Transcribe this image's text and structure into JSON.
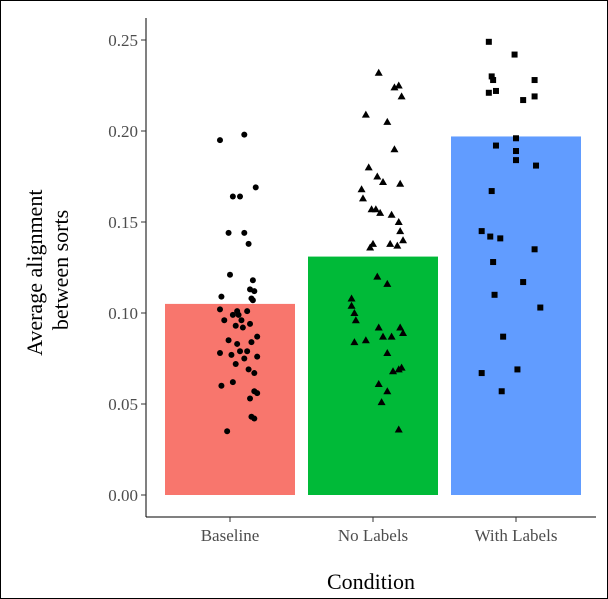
{
  "chart_data": {
    "type": "bar",
    "title": "",
    "xlabel": "Condition",
    "ylabel_lines": [
      "Average alignment",
      "between sorts"
    ],
    "categories": [
      "Baseline",
      "No Labels",
      "With Labels"
    ],
    "values": [
      0.105,
      0.131,
      0.197
    ],
    "bar_colors": [
      "#F8766D",
      "#00BA38",
      "#619CFF"
    ],
    "ylim": [
      0,
      0.25
    ],
    "yticks": [
      0,
      0.05,
      0.1,
      0.15,
      0.2,
      0.25
    ],
    "ytick_labels": [
      "0.00",
      "0.05",
      "0.10",
      "0.15",
      "0.20",
      "0.25"
    ],
    "grid": false,
    "point_shapes": [
      "circle",
      "triangle",
      "square"
    ],
    "points": [
      [
        {
          "x": 0.93,
          "y": 0.195
        },
        {
          "x": 1.1,
          "y": 0.198
        },
        {
          "x": 1.02,
          "y": 0.164
        },
        {
          "x": 1.07,
          "y": 0.164
        },
        {
          "x": 1.18,
          "y": 0.169
        },
        {
          "x": 0.99,
          "y": 0.144
        },
        {
          "x": 1.1,
          "y": 0.144
        },
        {
          "x": 1.13,
          "y": 0.138
        },
        {
          "x": 1.0,
          "y": 0.121
        },
        {
          "x": 1.16,
          "y": 0.118
        },
        {
          "x": 1.14,
          "y": 0.113
        },
        {
          "x": 1.17,
          "y": 0.112
        },
        {
          "x": 0.94,
          "y": 0.109
        },
        {
          "x": 1.15,
          "y": 0.108
        },
        {
          "x": 1.16,
          "y": 0.107
        },
        {
          "x": 0.93,
          "y": 0.102
        },
        {
          "x": 1.05,
          "y": 0.101
        },
        {
          "x": 1.12,
          "y": 0.101
        },
        {
          "x": 1.02,
          "y": 0.099
        },
        {
          "x": 1.06,
          "y": 0.099
        },
        {
          "x": 0.96,
          "y": 0.096
        },
        {
          "x": 1.08,
          "y": 0.096
        },
        {
          "x": 1.14,
          "y": 0.094
        },
        {
          "x": 1.04,
          "y": 0.093
        },
        {
          "x": 1.09,
          "y": 0.092
        },
        {
          "x": 1.19,
          "y": 0.087
        },
        {
          "x": 0.99,
          "y": 0.085
        },
        {
          "x": 1.15,
          "y": 0.084
        },
        {
          "x": 1.05,
          "y": 0.083
        },
        {
          "x": 1.12,
          "y": 0.079
        },
        {
          "x": 0.93,
          "y": 0.078
        },
        {
          "x": 1.07,
          "y": 0.079
        },
        {
          "x": 1.01,
          "y": 0.077
        },
        {
          "x": 1.1,
          "y": 0.075
        },
        {
          "x": 1.19,
          "y": 0.076
        },
        {
          "x": 1.04,
          "y": 0.072
        },
        {
          "x": 1.13,
          "y": 0.069
        },
        {
          "x": 1.17,
          "y": 0.067
        },
        {
          "x": 0.94,
          "y": 0.06
        },
        {
          "x": 1.02,
          "y": 0.062
        },
        {
          "x": 1.17,
          "y": 0.057
        },
        {
          "x": 1.19,
          "y": 0.056
        },
        {
          "x": 1.14,
          "y": 0.053
        },
        {
          "x": 1.15,
          "y": 0.043
        },
        {
          "x": 1.17,
          "y": 0.042
        },
        {
          "x": 0.98,
          "y": 0.035
        }
      ],
      [
        {
          "x": 2.04,
          "y": 0.232
        },
        {
          "x": 2.18,
          "y": 0.225
        },
        {
          "x": 2.15,
          "y": 0.224
        },
        {
          "x": 2.2,
          "y": 0.219
        },
        {
          "x": 1.95,
          "y": 0.209
        },
        {
          "x": 2.1,
          "y": 0.205
        },
        {
          "x": 2.15,
          "y": 0.19
        },
        {
          "x": 1.97,
          "y": 0.18
        },
        {
          "x": 2.03,
          "y": 0.175
        },
        {
          "x": 2.07,
          "y": 0.172
        },
        {
          "x": 2.19,
          "y": 0.171
        },
        {
          "x": 1.92,
          "y": 0.168
        },
        {
          "x": 1.93,
          "y": 0.163
        },
        {
          "x": 2.02,
          "y": 0.157
        },
        {
          "x": 1.99,
          "y": 0.157
        },
        {
          "x": 2.05,
          "y": 0.155
        },
        {
          "x": 2.13,
          "y": 0.154
        },
        {
          "x": 2.18,
          "y": 0.15
        },
        {
          "x": 2.19,
          "y": 0.145
        },
        {
          "x": 2.21,
          "y": 0.14
        },
        {
          "x": 2.0,
          "y": 0.138
        },
        {
          "x": 1.98,
          "y": 0.136
        },
        {
          "x": 2.17,
          "y": 0.137
        },
        {
          "x": 2.12,
          "y": 0.138
        },
        {
          "x": 2.03,
          "y": 0.12
        },
        {
          "x": 2.1,
          "y": 0.116
        },
        {
          "x": 1.85,
          "y": 0.108
        },
        {
          "x": 1.85,
          "y": 0.104
        },
        {
          "x": 1.87,
          "y": 0.1
        },
        {
          "x": 1.88,
          "y": 0.096
        },
        {
          "x": 2.04,
          "y": 0.092
        },
        {
          "x": 2.19,
          "y": 0.092
        },
        {
          "x": 2.21,
          "y": 0.089
        },
        {
          "x": 2.07,
          "y": 0.087
        },
        {
          "x": 2.13,
          "y": 0.087
        },
        {
          "x": 1.87,
          "y": 0.084
        },
        {
          "x": 1.95,
          "y": 0.085
        },
        {
          "x": 2.1,
          "y": 0.078
        },
        {
          "x": 2.2,
          "y": 0.07
        },
        {
          "x": 2.18,
          "y": 0.069
        },
        {
          "x": 2.14,
          "y": 0.068
        },
        {
          "x": 2.04,
          "y": 0.061
        },
        {
          "x": 2.1,
          "y": 0.057
        },
        {
          "x": 2.06,
          "y": 0.051
        },
        {
          "x": 2.18,
          "y": 0.036
        }
      ],
      [
        {
          "x": 2.81,
          "y": 0.249
        },
        {
          "x": 2.99,
          "y": 0.242
        },
        {
          "x": 2.83,
          "y": 0.23
        },
        {
          "x": 2.84,
          "y": 0.228
        },
        {
          "x": 3.13,
          "y": 0.228
        },
        {
          "x": 2.81,
          "y": 0.221
        },
        {
          "x": 2.86,
          "y": 0.222
        },
        {
          "x": 3.05,
          "y": 0.217
        },
        {
          "x": 3.13,
          "y": 0.219
        },
        {
          "x": 3.0,
          "y": 0.196
        },
        {
          "x": 2.86,
          "y": 0.192
        },
        {
          "x": 3.0,
          "y": 0.189
        },
        {
          "x": 3.0,
          "y": 0.184
        },
        {
          "x": 3.14,
          "y": 0.181
        },
        {
          "x": 2.83,
          "y": 0.167
        },
        {
          "x": 2.76,
          "y": 0.145
        },
        {
          "x": 2.82,
          "y": 0.142
        },
        {
          "x": 2.89,
          "y": 0.141
        },
        {
          "x": 3.13,
          "y": 0.135
        },
        {
          "x": 2.84,
          "y": 0.128
        },
        {
          "x": 3.05,
          "y": 0.117
        },
        {
          "x": 2.85,
          "y": 0.11
        },
        {
          "x": 3.17,
          "y": 0.103
        },
        {
          "x": 2.91,
          "y": 0.087
        },
        {
          "x": 3.01,
          "y": 0.069
        },
        {
          "x": 2.76,
          "y": 0.067
        },
        {
          "x": 2.9,
          "y": 0.057
        }
      ]
    ]
  }
}
